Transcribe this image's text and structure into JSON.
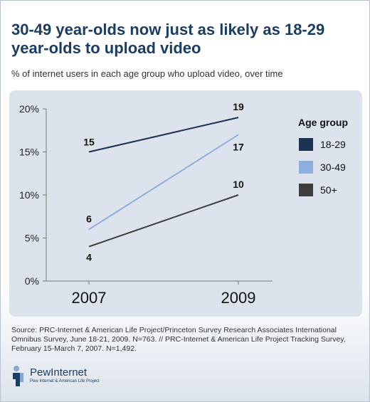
{
  "title": "30-49 year-olds now just as likely as 18-29 year-olds to upload video",
  "subtitle": "% of internet users in each age group who upload video, over time",
  "colors": {
    "series_18_29": "#1b3350",
    "series_30_49": "#90aedb",
    "series_50_plus": "#3d3d3d",
    "title": "#1b3d63",
    "panel": "#dde3ec"
  },
  "chart_data": {
    "type": "line",
    "x": [
      "2007",
      "2009"
    ],
    "ylim": [
      0,
      20
    ],
    "yticks": [
      0,
      5,
      10,
      15,
      20
    ],
    "ytick_labels": [
      "0%",
      "5%",
      "10%",
      "15%",
      "20%"
    ],
    "grid": false,
    "legend_title": "Age group",
    "legend_placement": "right",
    "series": [
      {
        "name": "18-29",
        "values": [
          15,
          19
        ],
        "labels": [
          "15",
          "19"
        ],
        "color": "#1b3350"
      },
      {
        "name": "30-49",
        "values": [
          6,
          17
        ],
        "labels": [
          "6",
          "17"
        ],
        "color": "#90aedb"
      },
      {
        "name": "50+",
        "values": [
          4,
          10
        ],
        "labels": [
          "4",
          "10"
        ],
        "color": "#3d3d3d"
      }
    ]
  },
  "source": "Source: PRC-Internet & American Life Project/Princeton Survey Research Associates International Omnibus Survey, June 18-21, 2009. N=763. // PRC-Internet & American Life Project Tracking Survey, February 15-March 7, 2007. N=1,492.",
  "logo": {
    "wordmark": "PewInternet",
    "tagline": "Pew Internet & American Life Project",
    "icon": "pew-logo-icon"
  }
}
